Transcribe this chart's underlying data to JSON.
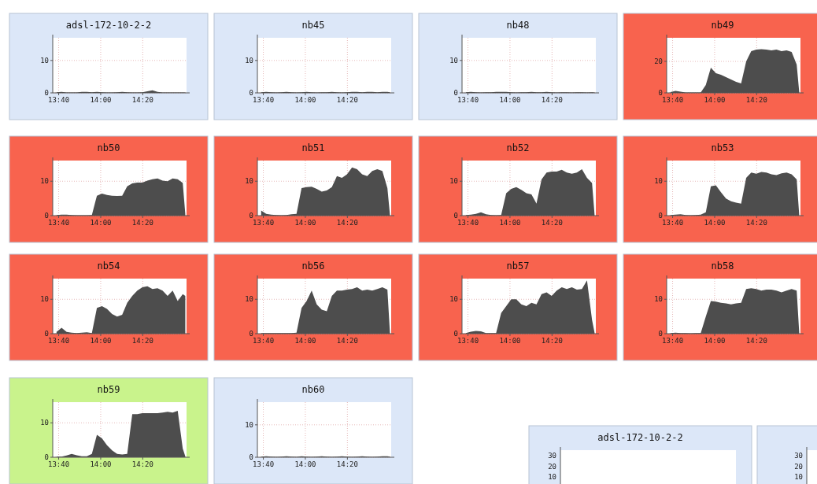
{
  "chart_data": [
    {
      "type": "area",
      "title": "adsl-172-10-2-2",
      "x": [
        13.65,
        13.69,
        13.73,
        13.77,
        13.81,
        13.85,
        13.89,
        13.93,
        13.97,
        14.01,
        14.05,
        14.09,
        14.13,
        14.17,
        14.21,
        14.25,
        14.29,
        14.33,
        14.37,
        14.41,
        14.45,
        14.49,
        14.53,
        14.57,
        14.61,
        14.65,
        14.67
      ],
      "values": [
        0.2,
        0.3,
        0.1,
        0.1,
        0.1,
        0.3,
        0.3,
        0.2,
        0.3,
        0.2,
        0.1,
        0.1,
        0.2,
        0.3,
        0.2,
        0.1,
        0.1,
        0.2,
        0.5,
        0.8,
        0.3,
        0.1,
        0.1,
        0.1,
        0.1,
        0.1,
        0.1
      ],
      "color": "#4d4d4d",
      "xlim": [
        13.62,
        14.68
      ],
      "xticks": [
        {
          "value": 13.667,
          "label": "13:40"
        },
        {
          "value": 14,
          "label": "14:00"
        },
        {
          "value": 14.333,
          "label": "14:20"
        }
      ],
      "ylim": [
        0,
        17
      ],
      "yticks": [
        0,
        10
      ],
      "grid": true
    },
    {
      "type": "area",
      "title": "nb45",
      "x": [
        13.65,
        13.69,
        13.73,
        13.77,
        13.81,
        13.85,
        13.89,
        13.93,
        13.97,
        14.01,
        14.05,
        14.09,
        14.13,
        14.17,
        14.21,
        14.25,
        14.29,
        14.33,
        14.37,
        14.41,
        14.45,
        14.49,
        14.53,
        14.57,
        14.61,
        14.65,
        14.67
      ],
      "values": [
        0.2,
        0.3,
        0.2,
        0.1,
        0.2,
        0.3,
        0.2,
        0.1,
        0.2,
        0.3,
        0.2,
        0.1,
        0.2,
        0.2,
        0.3,
        0.2,
        0.1,
        0.2,
        0.3,
        0.3,
        0.2,
        0.3,
        0.3,
        0.2,
        0.3,
        0.3,
        0.2
      ],
      "color": "#4d4d4d",
      "xlim": [
        13.62,
        14.68
      ],
      "xticks": [
        {
          "value": 13.667,
          "label": "13:40"
        },
        {
          "value": 14,
          "label": "14:00"
        },
        {
          "value": 14.333,
          "label": "14:20"
        }
      ],
      "ylim": [
        0,
        17
      ],
      "yticks": [
        0,
        10
      ],
      "grid": true
    },
    {
      "type": "area",
      "title": "nb48",
      "x": [
        13.65,
        13.69,
        13.73,
        13.77,
        13.81,
        13.85,
        13.89,
        13.93,
        13.97,
        14.01,
        14.05,
        14.09,
        14.13,
        14.17,
        14.21,
        14.25,
        14.29,
        14.33,
        14.37,
        14.41,
        14.45,
        14.49,
        14.53,
        14.57,
        14.61,
        14.65,
        14.67
      ],
      "values": [
        0.2,
        0.3,
        0.2,
        0.1,
        0.2,
        0.2,
        0.3,
        0.3,
        0.3,
        0.2,
        0.1,
        0.2,
        0.2,
        0.3,
        0.2,
        0.2,
        0.3,
        0.2,
        0.1,
        0.2,
        0.2,
        0.1,
        0.2,
        0.2,
        0.1,
        0.2,
        0.1
      ],
      "color": "#4d4d4d",
      "xlim": [
        13.62,
        14.68
      ],
      "xticks": [
        {
          "value": 13.667,
          "label": "13:40"
        },
        {
          "value": 14,
          "label": "14:00"
        },
        {
          "value": 14.333,
          "label": "14:20"
        }
      ],
      "ylim": [
        0,
        17
      ],
      "yticks": [
        0,
        10
      ],
      "grid": true
    },
    {
      "type": "area",
      "title": "nb49",
      "x": [
        13.65,
        13.69,
        13.73,
        13.77,
        13.81,
        13.85,
        13.89,
        13.93,
        13.97,
        14.01,
        14.05,
        14.09,
        14.13,
        14.17,
        14.21,
        14.25,
        14.29,
        14.33,
        14.37,
        14.41,
        14.45,
        14.49,
        14.53,
        14.57,
        14.61,
        14.65,
        14.67
      ],
      "values": [
        0.5,
        1.2,
        0.8,
        0.2,
        0.2,
        0.2,
        0.3,
        5,
        16,
        12.5,
        11.5,
        10,
        8.5,
        7,
        6,
        20,
        26.5,
        27.5,
        27.8,
        27.5,
        27,
        27.5,
        26.5,
        27,
        26,
        18,
        0.5
      ],
      "color": "#4d4d4d",
      "xlim": [
        13.62,
        14.68
      ],
      "xticks": [
        {
          "value": 13.667,
          "label": "13:40"
        },
        {
          "value": 14,
          "label": "14:00"
        },
        {
          "value": 14.333,
          "label": "14:20"
        }
      ],
      "ylim": [
        0,
        35
      ],
      "yticks": [
        0,
        20
      ],
      "grid": true
    },
    {
      "type": "area",
      "title": "nb50",
      "x": [
        13.65,
        13.69,
        13.73,
        13.77,
        13.81,
        13.85,
        13.89,
        13.93,
        13.97,
        14.01,
        14.05,
        14.09,
        14.13,
        14.17,
        14.21,
        14.25,
        14.29,
        14.33,
        14.37,
        14.41,
        14.45,
        14.49,
        14.53,
        14.57,
        14.61,
        14.65,
        14.67
      ],
      "values": [
        0.2,
        0.3,
        0.3,
        0.2,
        0.1,
        0.1,
        0.1,
        0.2,
        5.8,
        6.4,
        6,
        5.8,
        5.7,
        5.8,
        8.5,
        9.4,
        9.6,
        9.6,
        10.2,
        10.6,
        10.8,
        10.2,
        10,
        10.8,
        10.6,
        9.5,
        0.5
      ],
      "color": "#4d4d4d",
      "xlim": [
        13.62,
        14.68
      ],
      "xticks": [
        {
          "value": 13.667,
          "label": "13:40"
        },
        {
          "value": 14,
          "label": "14:00"
        },
        {
          "value": 14.333,
          "label": "14:20"
        }
      ],
      "ylim": [
        0,
        16
      ],
      "yticks": [
        0,
        10
      ],
      "grid": true
    },
    {
      "type": "area",
      "title": "nb51",
      "x": [
        13.65,
        13.69,
        13.73,
        13.77,
        13.81,
        13.85,
        13.89,
        13.93,
        13.97,
        14.01,
        14.05,
        14.09,
        14.13,
        14.17,
        14.21,
        14.25,
        14.29,
        14.33,
        14.37,
        14.41,
        14.45,
        14.49,
        14.53,
        14.57,
        14.61,
        14.65,
        14.67
      ],
      "values": [
        1.5,
        0.5,
        0.3,
        0.2,
        0.1,
        0.2,
        0.4,
        0.5,
        8,
        8.3,
        8.4,
        7.8,
        7,
        7.3,
        8.3,
        11.5,
        11,
        12,
        14,
        13.5,
        12,
        11.5,
        13,
        13.5,
        13,
        8,
        0.3
      ],
      "color": "#4d4d4d",
      "xlim": [
        13.62,
        14.68
      ],
      "xticks": [
        {
          "value": 13.667,
          "label": "13:40"
        },
        {
          "value": 14,
          "label": "14:00"
        },
        {
          "value": 14.333,
          "label": "14:20"
        }
      ],
      "ylim": [
        0,
        16
      ],
      "yticks": [
        0,
        10
      ],
      "grid": true
    },
    {
      "type": "area",
      "title": "nb52",
      "x": [
        13.65,
        13.69,
        13.73,
        13.77,
        13.81,
        13.85,
        13.89,
        13.93,
        13.97,
        14.01,
        14.05,
        14.09,
        14.13,
        14.17,
        14.21,
        14.25,
        14.29,
        14.33,
        14.37,
        14.41,
        14.45,
        14.49,
        14.53,
        14.57,
        14.61,
        14.65,
        14.67
      ],
      "values": [
        0.2,
        0.3,
        0.5,
        1,
        0.4,
        0.2,
        0.1,
        0.2,
        6.5,
        7.8,
        8.3,
        7.5,
        6.5,
        6.2,
        3.5,
        10.5,
        12.5,
        12.8,
        12.8,
        13.3,
        12.5,
        12.2,
        12.5,
        13.5,
        11,
        9.5,
        0.3
      ],
      "color": "#4d4d4d",
      "xlim": [
        13.62,
        14.68
      ],
      "xticks": [
        {
          "value": 13.667,
          "label": "13:40"
        },
        {
          "value": 14,
          "label": "14:00"
        },
        {
          "value": 14.333,
          "label": "14:20"
        }
      ],
      "ylim": [
        0,
        16
      ],
      "yticks": [
        0,
        10
      ],
      "grid": true
    },
    {
      "type": "area",
      "title": "nb53",
      "x": [
        13.65,
        13.69,
        13.73,
        13.77,
        13.81,
        13.85,
        13.89,
        13.93,
        13.97,
        14.01,
        14.05,
        14.09,
        14.13,
        14.17,
        14.21,
        14.25,
        14.29,
        14.33,
        14.37,
        14.41,
        14.45,
        14.49,
        14.53,
        14.57,
        14.61,
        14.65,
        14.67
      ],
      "values": [
        0.2,
        0.3,
        0.4,
        0.2,
        0.1,
        0.2,
        0.3,
        1,
        8.5,
        8.8,
        6.8,
        5,
        4.2,
        3.8,
        3.5,
        11,
        12.5,
        12.2,
        12.7,
        12.5,
        12,
        11.8,
        12.3,
        12.5,
        12,
        10.5,
        0.2
      ],
      "color": "#4d4d4d",
      "xlim": [
        13.62,
        14.68
      ],
      "xticks": [
        {
          "value": 13.667,
          "label": "13:40"
        },
        {
          "value": 14,
          "label": "14:00"
        },
        {
          "value": 14.333,
          "label": "14:20"
        }
      ],
      "ylim": [
        0,
        16
      ],
      "yticks": [
        0,
        10
      ],
      "grid": true
    },
    {
      "type": "area",
      "title": "nb54",
      "x": [
        13.65,
        13.69,
        13.73,
        13.77,
        13.81,
        13.85,
        13.89,
        13.93,
        13.97,
        14.01,
        14.05,
        14.09,
        14.13,
        14.17,
        14.21,
        14.25,
        14.29,
        14.33,
        14.37,
        14.41,
        14.45,
        14.49,
        14.53,
        14.57,
        14.61,
        14.65,
        14.67
      ],
      "values": [
        0.5,
        1.7,
        0.5,
        0.3,
        0.2,
        0.3,
        0.4,
        0.2,
        7.5,
        8,
        7.2,
        5.7,
        5,
        5.5,
        9,
        11,
        12.5,
        13.5,
        13.8,
        13,
        13.2,
        12.5,
        11,
        12.5,
        9.5,
        11.5,
        11
      ],
      "color": "#4d4d4d",
      "xlim": [
        13.62,
        14.68
      ],
      "xticks": [
        {
          "value": 13.667,
          "label": "13:40"
        },
        {
          "value": 14,
          "label": "14:00"
        },
        {
          "value": 14.333,
          "label": "14:20"
        }
      ],
      "ylim": [
        0,
        16
      ],
      "yticks": [
        0,
        10
      ],
      "grid": true
    },
    {
      "type": "area",
      "title": "nb56",
      "x": [
        13.65,
        13.69,
        13.73,
        13.77,
        13.81,
        13.85,
        13.89,
        13.93,
        13.97,
        14.01,
        14.05,
        14.09,
        14.13,
        14.17,
        14.21,
        14.25,
        14.29,
        14.33,
        14.37,
        14.41,
        14.45,
        14.49,
        14.53,
        14.57,
        14.61,
        14.65,
        14.67
      ],
      "values": [
        0.2,
        0.2,
        0.2,
        0.2,
        0.2,
        0.2,
        0.2,
        0.3,
        7.5,
        9.5,
        12.5,
        8.5,
        7,
        6.5,
        11,
        12.5,
        12.5,
        12.8,
        13,
        13.5,
        12.5,
        12.8,
        12.5,
        13,
        13.5,
        12.8,
        0.3
      ],
      "color": "#4d4d4d",
      "xlim": [
        13.62,
        14.68
      ],
      "xticks": [
        {
          "value": 13.667,
          "label": "13:40"
        },
        {
          "value": 14,
          "label": "14:00"
        },
        {
          "value": 14.333,
          "label": "14:20"
        }
      ],
      "ylim": [
        0,
        16
      ],
      "yticks": [
        0,
        10
      ],
      "grid": true
    },
    {
      "type": "area",
      "title": "nb57",
      "x": [
        13.65,
        13.69,
        13.73,
        13.77,
        13.81,
        13.85,
        13.89,
        13.93,
        13.97,
        14.01,
        14.05,
        14.09,
        14.13,
        14.17,
        14.21,
        14.25,
        14.29,
        14.33,
        14.37,
        14.41,
        14.45,
        14.49,
        14.53,
        14.57,
        14.61,
        14.65,
        14.67
      ],
      "values": [
        0.2,
        0.6,
        0.8,
        0.7,
        0.2,
        0.2,
        0.2,
        6,
        8,
        10,
        10,
        8.5,
        8,
        9,
        8.5,
        11.5,
        12,
        11,
        12.5,
        13.5,
        13,
        13.5,
        12.8,
        13,
        15.5,
        4,
        0.3
      ],
      "color": "#4d4d4d",
      "xlim": [
        13.62,
        14.68
      ],
      "xticks": [
        {
          "value": 13.667,
          "label": "13:40"
        },
        {
          "value": 14,
          "label": "14:00"
        },
        {
          "value": 14.333,
          "label": "14:20"
        }
      ],
      "ylim": [
        0,
        16
      ],
      "yticks": [
        0,
        10
      ],
      "grid": true
    },
    {
      "type": "area",
      "title": "nb58",
      "x": [
        13.65,
        13.69,
        13.73,
        13.77,
        13.81,
        13.85,
        13.89,
        13.93,
        13.97,
        14.01,
        14.05,
        14.09,
        14.13,
        14.17,
        14.21,
        14.25,
        14.29,
        14.33,
        14.37,
        14.41,
        14.45,
        14.49,
        14.53,
        14.57,
        14.61,
        14.65,
        14.67
      ],
      "values": [
        0.2,
        0.3,
        0.2,
        0.2,
        0.1,
        0.2,
        0.2,
        5,
        9.5,
        9.3,
        9,
        8.8,
        8.5,
        8.8,
        9,
        13,
        13.2,
        13,
        12.5,
        12.8,
        12.8,
        12.5,
        12,
        12.5,
        13,
        12.5,
        0.3
      ],
      "color": "#4d4d4d",
      "xlim": [
        13.62,
        14.68
      ],
      "xticks": [
        {
          "value": 13.667,
          "label": "13:40"
        },
        {
          "value": 14,
          "label": "14:00"
        },
        {
          "value": 14.333,
          "label": "14:20"
        }
      ],
      "ylim": [
        0,
        16
      ],
      "yticks": [
        0,
        10
      ],
      "grid": true
    },
    {
      "type": "area",
      "title": "nb59",
      "x": [
        13.65,
        13.69,
        13.73,
        13.77,
        13.81,
        13.85,
        13.89,
        13.93,
        13.97,
        14.01,
        14.05,
        14.09,
        14.13,
        14.17,
        14.21,
        14.25,
        14.29,
        14.33,
        14.37,
        14.41,
        14.45,
        14.49,
        14.53,
        14.57,
        14.61,
        14.65,
        14.67
      ],
      "values": [
        0.2,
        0.2,
        0.5,
        1,
        0.6,
        0.3,
        0.3,
        1,
        6.5,
        5.5,
        3.5,
        2,
        1,
        0.8,
        1,
        12.5,
        12.5,
        12.8,
        12.8,
        12.8,
        12.8,
        13,
        13.2,
        13,
        13.5,
        2.5,
        0.3
      ],
      "color": "#4d4d4d",
      "xlim": [
        13.62,
        14.68
      ],
      "xticks": [
        {
          "value": 13.667,
          "label": "13:40"
        },
        {
          "value": 14,
          "label": "14:00"
        },
        {
          "value": 14.333,
          "label": "14:20"
        }
      ],
      "ylim": [
        0,
        16
      ],
      "yticks": [
        0,
        10
      ],
      "grid": true
    },
    {
      "type": "area",
      "title": "nb60",
      "x": [
        13.65,
        13.69,
        13.73,
        13.77,
        13.81,
        13.85,
        13.89,
        13.93,
        13.97,
        14.01,
        14.05,
        14.09,
        14.13,
        14.17,
        14.21,
        14.25,
        14.29,
        14.33,
        14.37,
        14.41,
        14.45,
        14.49,
        14.53,
        14.57,
        14.61,
        14.65,
        14.67
      ],
      "values": [
        0.2,
        0.3,
        0.2,
        0.1,
        0.2,
        0.3,
        0.2,
        0.1,
        0.3,
        0.2,
        0.1,
        0.2,
        0.3,
        0.2,
        0.1,
        0.2,
        0.3,
        0.2,
        0.1,
        0.2,
        0.3,
        0.2,
        0.1,
        0.2,
        0.3,
        0.3,
        0.2
      ],
      "color": "#4d4d4d",
      "xlim": [
        13.62,
        14.68
      ],
      "xticks": [
        {
          "value": 13.667,
          "label": "13:40"
        },
        {
          "value": 14,
          "label": "14:00"
        },
        {
          "value": 14.333,
          "label": "14:20"
        }
      ],
      "ylim": [
        0,
        17
      ],
      "yticks": [
        0,
        10
      ],
      "grid": true
    },
    {
      "type": "other",
      "title": "adsl-172-10-2-2",
      "annotations": [
        "30",
        "20",
        "10"
      ]
    },
    {
      "type": "other",
      "annotations": [
        "30",
        "20",
        "10"
      ]
    }
  ]
}
